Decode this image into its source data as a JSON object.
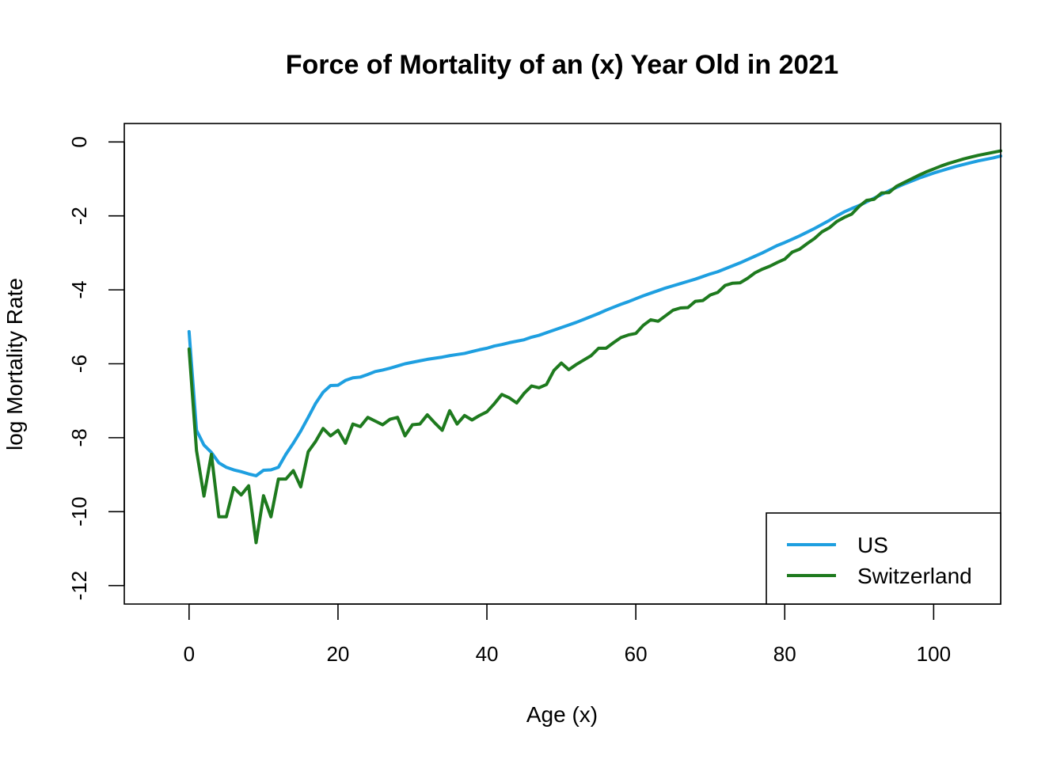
{
  "chart_data": {
    "type": "line",
    "title": "Force of Mortality of an (x) Year Old in 2021",
    "xlabel": "Age (x)",
    "ylabel": "log Mortality Rate",
    "xlim": [
      -8.7,
      109
    ],
    "ylim": [
      -12.5,
      0.5
    ],
    "xticks": [
      0,
      20,
      40,
      60,
      80,
      100
    ],
    "xtick_labels": [
      "0",
      "20",
      "40",
      "60",
      "80",
      "100"
    ],
    "yticks": [
      0,
      -2,
      -4,
      -6,
      -8,
      -10,
      -12
    ],
    "ytick_labels": [
      "0",
      "-2",
      "-4",
      "-6",
      "-8",
      "-10",
      "-12"
    ],
    "grid": false,
    "legend_position": "bottom-right",
    "series": [
      {
        "name": "US",
        "color": "#1e9fe0",
        "x": [
          0,
          1,
          2,
          3,
          4,
          5,
          6,
          7,
          8,
          9,
          10,
          11,
          12,
          13,
          14,
          15,
          16,
          17,
          18,
          19,
          20,
          21,
          22,
          23,
          24,
          25,
          26,
          27,
          28,
          29,
          30,
          31,
          32,
          33,
          34,
          35,
          36,
          37,
          38,
          39,
          40,
          41,
          42,
          43,
          44,
          45,
          46,
          47,
          48,
          49,
          50,
          51,
          52,
          53,
          54,
          55,
          56,
          57,
          58,
          59,
          60,
          61,
          62,
          63,
          64,
          65,
          66,
          67,
          68,
          69,
          70,
          71,
          72,
          73,
          74,
          75,
          76,
          77,
          78,
          79,
          80,
          81,
          82,
          83,
          84,
          85,
          86,
          87,
          88,
          89,
          90,
          91,
          92,
          93,
          94,
          95,
          96,
          97,
          98,
          99,
          100,
          101,
          102,
          103,
          104,
          105,
          106,
          107,
          108,
          109
        ],
        "y": [
          -5.13,
          -7.8,
          -8.2,
          -8.4,
          -8.68,
          -8.8,
          -8.87,
          -8.92,
          -8.98,
          -9.03,
          -8.88,
          -8.87,
          -8.8,
          -8.45,
          -8.15,
          -7.82,
          -7.45,
          -7.07,
          -6.77,
          -6.59,
          -6.58,
          -6.45,
          -6.38,
          -6.36,
          -6.29,
          -6.21,
          -6.17,
          -6.12,
          -6.06,
          -6.0,
          -5.96,
          -5.92,
          -5.88,
          -5.85,
          -5.82,
          -5.78,
          -5.75,
          -5.72,
          -5.67,
          -5.62,
          -5.58,
          -5.52,
          -5.48,
          -5.43,
          -5.39,
          -5.35,
          -5.28,
          -5.23,
          -5.16,
          -5.09,
          -5.02,
          -4.95,
          -4.88,
          -4.8,
          -4.72,
          -4.64,
          -4.55,
          -4.47,
          -4.39,
          -4.32,
          -4.24,
          -4.16,
          -4.09,
          -4.02,
          -3.95,
          -3.89,
          -3.83,
          -3.77,
          -3.71,
          -3.64,
          -3.57,
          -3.51,
          -3.43,
          -3.35,
          -3.27,
          -3.18,
          -3.09,
          -3.0,
          -2.9,
          -2.8,
          -2.72,
          -2.63,
          -2.54,
          -2.44,
          -2.34,
          -2.23,
          -2.12,
          -2.0,
          -1.89,
          -1.8,
          -1.72,
          -1.62,
          -1.52,
          -1.42,
          -1.32,
          -1.23,
          -1.14,
          -1.06,
          -0.98,
          -0.91,
          -0.84,
          -0.78,
          -0.72,
          -0.66,
          -0.61,
          -0.56,
          -0.51,
          -0.47,
          -0.43,
          -0.38
        ]
      },
      {
        "name": "Switzerland",
        "color": "#1e7a1e",
        "x": [
          0,
          1,
          2,
          3,
          4,
          5,
          6,
          7,
          8,
          9,
          10,
          11,
          12,
          13,
          14,
          15,
          16,
          17,
          18,
          19,
          20,
          21,
          22,
          23,
          24,
          25,
          26,
          27,
          28,
          29,
          30,
          31,
          32,
          33,
          34,
          35,
          36,
          37,
          38,
          39,
          40,
          41,
          42,
          43,
          44,
          45,
          46,
          47,
          48,
          49,
          50,
          51,
          52,
          53,
          54,
          55,
          56,
          57,
          58,
          59,
          60,
          61,
          62,
          63,
          64,
          65,
          66,
          67,
          68,
          69,
          70,
          71,
          72,
          73,
          74,
          75,
          76,
          77,
          78,
          79,
          80,
          81,
          82,
          83,
          84,
          85,
          86,
          87,
          88,
          89,
          90,
          91,
          92,
          93,
          94,
          95,
          96,
          97,
          98,
          99,
          100,
          101,
          102,
          103,
          104,
          105,
          106,
          107,
          108,
          109
        ],
        "y": [
          -5.6,
          -8.35,
          -9.58,
          -8.45,
          -10.14,
          -10.14,
          -9.35,
          -9.55,
          -9.3,
          -10.84,
          -9.57,
          -10.14,
          -9.12,
          -9.12,
          -8.89,
          -9.33,
          -8.38,
          -8.1,
          -7.75,
          -7.95,
          -7.8,
          -8.15,
          -7.63,
          -7.7,
          -7.45,
          -7.55,
          -7.65,
          -7.5,
          -7.45,
          -7.95,
          -7.65,
          -7.63,
          -7.38,
          -7.6,
          -7.8,
          -7.27,
          -7.63,
          -7.4,
          -7.52,
          -7.4,
          -7.3,
          -7.08,
          -6.83,
          -6.92,
          -7.06,
          -6.8,
          -6.6,
          -6.65,
          -6.56,
          -6.18,
          -5.98,
          -6.16,
          -6.02,
          -5.9,
          -5.78,
          -5.58,
          -5.58,
          -5.43,
          -5.29,
          -5.22,
          -5.18,
          -4.96,
          -4.81,
          -4.85,
          -4.7,
          -4.55,
          -4.49,
          -4.48,
          -4.31,
          -4.29,
          -4.14,
          -4.07,
          -3.88,
          -3.82,
          -3.81,
          -3.69,
          -3.54,
          -3.44,
          -3.36,
          -3.26,
          -3.17,
          -2.98,
          -2.9,
          -2.75,
          -2.61,
          -2.43,
          -2.32,
          -2.15,
          -2.04,
          -1.95,
          -1.74,
          -1.58,
          -1.55,
          -1.38,
          -1.37,
          -1.2,
          -1.1,
          -1.0,
          -0.9,
          -0.81,
          -0.73,
          -0.65,
          -0.58,
          -0.52,
          -0.46,
          -0.41,
          -0.36,
          -0.32,
          -0.28,
          -0.24
        ]
      }
    ]
  }
}
